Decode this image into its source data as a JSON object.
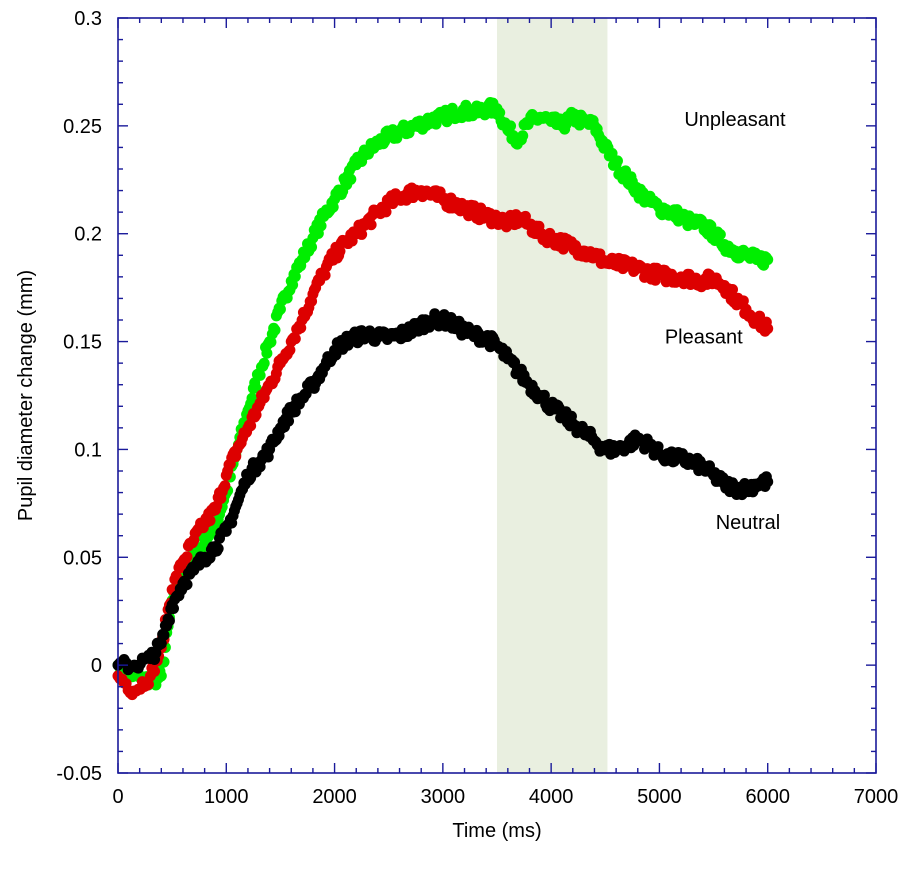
{
  "chart_data": {
    "type": "scatter",
    "title": "",
    "xlabel": "Time (ms)",
    "ylabel": "Pupil diameter change (mm)",
    "xlim": [
      0,
      7000
    ],
    "ylim": [
      -0.05,
      0.3
    ],
    "xticks": [
      0,
      1000,
      2000,
      3000,
      4000,
      5000,
      6000,
      7000
    ],
    "xtick_labels": [
      "0",
      "1000",
      "2000",
      "3000",
      "4000",
      "5000",
      "6000",
      "7000"
    ],
    "yticks": [
      -0.05,
      0,
      0.05,
      0.1,
      0.15,
      0.2,
      0.25,
      0.3
    ],
    "ytick_labels": [
      "-0.05",
      "0",
      "0.05",
      "0.1",
      "0.15",
      "0.2",
      "0.25",
      "0.3"
    ],
    "grid": false,
    "legend": "none",
    "highlight_band": {
      "x": [
        3500,
        4520
      ],
      "color": "#e9efe0"
    },
    "series": [
      {
        "name": "Unpleasant",
        "color": "#00ee00",
        "x": [
          0,
          150,
          300,
          400,
          500,
          600,
          700,
          800,
          900,
          1000,
          1100,
          1200,
          1300,
          1400,
          1500,
          1600,
          1700,
          1800,
          1900,
          2000,
          2100,
          2200,
          2300,
          2400,
          2500,
          2600,
          2700,
          2800,
          2900,
          3000,
          3100,
          3200,
          3300,
          3400,
          3500,
          3600,
          3700,
          3800,
          3900,
          4000,
          4100,
          4200,
          4300,
          4400,
          4500,
          4600,
          4700,
          4800,
          4900,
          5000,
          5100,
          5200,
          5300,
          5400,
          5500,
          5600,
          5700,
          5800,
          5900,
          6000
        ],
        "y": [
          0,
          -0.005,
          -0.008,
          -0.005,
          0.03,
          0.042,
          0.05,
          0.058,
          0.065,
          0.08,
          0.1,
          0.118,
          0.135,
          0.15,
          0.165,
          0.178,
          0.188,
          0.198,
          0.208,
          0.216,
          0.224,
          0.232,
          0.238,
          0.242,
          0.245,
          0.247,
          0.249,
          0.251,
          0.253,
          0.254,
          0.256,
          0.257,
          0.256,
          0.258,
          0.258,
          0.248,
          0.244,
          0.252,
          0.254,
          0.252,
          0.25,
          0.254,
          0.252,
          0.25,
          0.24,
          0.232,
          0.226,
          0.22,
          0.215,
          0.212,
          0.21,
          0.208,
          0.205,
          0.204,
          0.2,
          0.195,
          0.192,
          0.19,
          0.188,
          0.188
        ]
      },
      {
        "name": "Pleasant",
        "color": "#dd0000",
        "x": [
          0,
          150,
          300,
          400,
          500,
          600,
          700,
          800,
          900,
          1000,
          1100,
          1200,
          1300,
          1400,
          1500,
          1600,
          1700,
          1800,
          1900,
          2000,
          2100,
          2200,
          2300,
          2400,
          2500,
          2600,
          2700,
          2800,
          2900,
          3000,
          3100,
          3200,
          3300,
          3400,
          3500,
          3600,
          3700,
          3800,
          3900,
          4000,
          4100,
          4200,
          4300,
          4400,
          4500,
          4600,
          4700,
          4800,
          4900,
          5000,
          5100,
          5200,
          5300,
          5400,
          5500,
          5600,
          5700,
          5800,
          5900,
          6000
        ],
        "y": [
          -0.005,
          -0.012,
          -0.005,
          0.008,
          0.035,
          0.048,
          0.058,
          0.066,
          0.072,
          0.088,
          0.1,
          0.11,
          0.12,
          0.13,
          0.14,
          0.15,
          0.16,
          0.172,
          0.182,
          0.19,
          0.196,
          0.2,
          0.205,
          0.21,
          0.214,
          0.217,
          0.219,
          0.22,
          0.218,
          0.216,
          0.214,
          0.212,
          0.21,
          0.208,
          0.207,
          0.205,
          0.207,
          0.204,
          0.2,
          0.198,
          0.196,
          0.194,
          0.192,
          0.19,
          0.187,
          0.186,
          0.185,
          0.184,
          0.182,
          0.181,
          0.18,
          0.18,
          0.179,
          0.178,
          0.179,
          0.176,
          0.17,
          0.165,
          0.16,
          0.156
        ]
      },
      {
        "name": "Neutral",
        "color": "#000000",
        "x": [
          0,
          150,
          300,
          400,
          500,
          600,
          700,
          800,
          900,
          1000,
          1100,
          1200,
          1300,
          1400,
          1500,
          1600,
          1700,
          1800,
          1900,
          2000,
          2100,
          2200,
          2300,
          2400,
          2500,
          2600,
          2700,
          2800,
          2900,
          3000,
          3100,
          3200,
          3300,
          3400,
          3500,
          3600,
          3700,
          3800,
          3900,
          4000,
          4100,
          4200,
          4300,
          4400,
          4500,
          4600,
          4700,
          4800,
          4900,
          5000,
          5100,
          5200,
          5300,
          5400,
          5500,
          5600,
          5700,
          5800,
          5900,
          6000
        ],
        "y": [
          0,
          0,
          0.003,
          0.01,
          0.028,
          0.038,
          0.044,
          0.05,
          0.055,
          0.062,
          0.075,
          0.088,
          0.094,
          0.1,
          0.11,
          0.118,
          0.124,
          0.13,
          0.138,
          0.146,
          0.15,
          0.152,
          0.154,
          0.152,
          0.152,
          0.153,
          0.155,
          0.158,
          0.16,
          0.16,
          0.158,
          0.155,
          0.153,
          0.152,
          0.148,
          0.142,
          0.136,
          0.13,
          0.125,
          0.12,
          0.116,
          0.112,
          0.108,
          0.104,
          0.1,
          0.1,
          0.102,
          0.105,
          0.102,
          0.098,
          0.096,
          0.096,
          0.094,
          0.092,
          0.088,
          0.084,
          0.082,
          0.082,
          0.084,
          0.085
        ]
      }
    ],
    "annotations": [
      {
        "text": "Unpleasant",
        "x": 5230,
        "y": 0.25
      },
      {
        "text": "Pleasant",
        "x": 5050,
        "y": 0.149
      },
      {
        "text": "Neutral",
        "x": 5520,
        "y": 0.063
      }
    ]
  }
}
